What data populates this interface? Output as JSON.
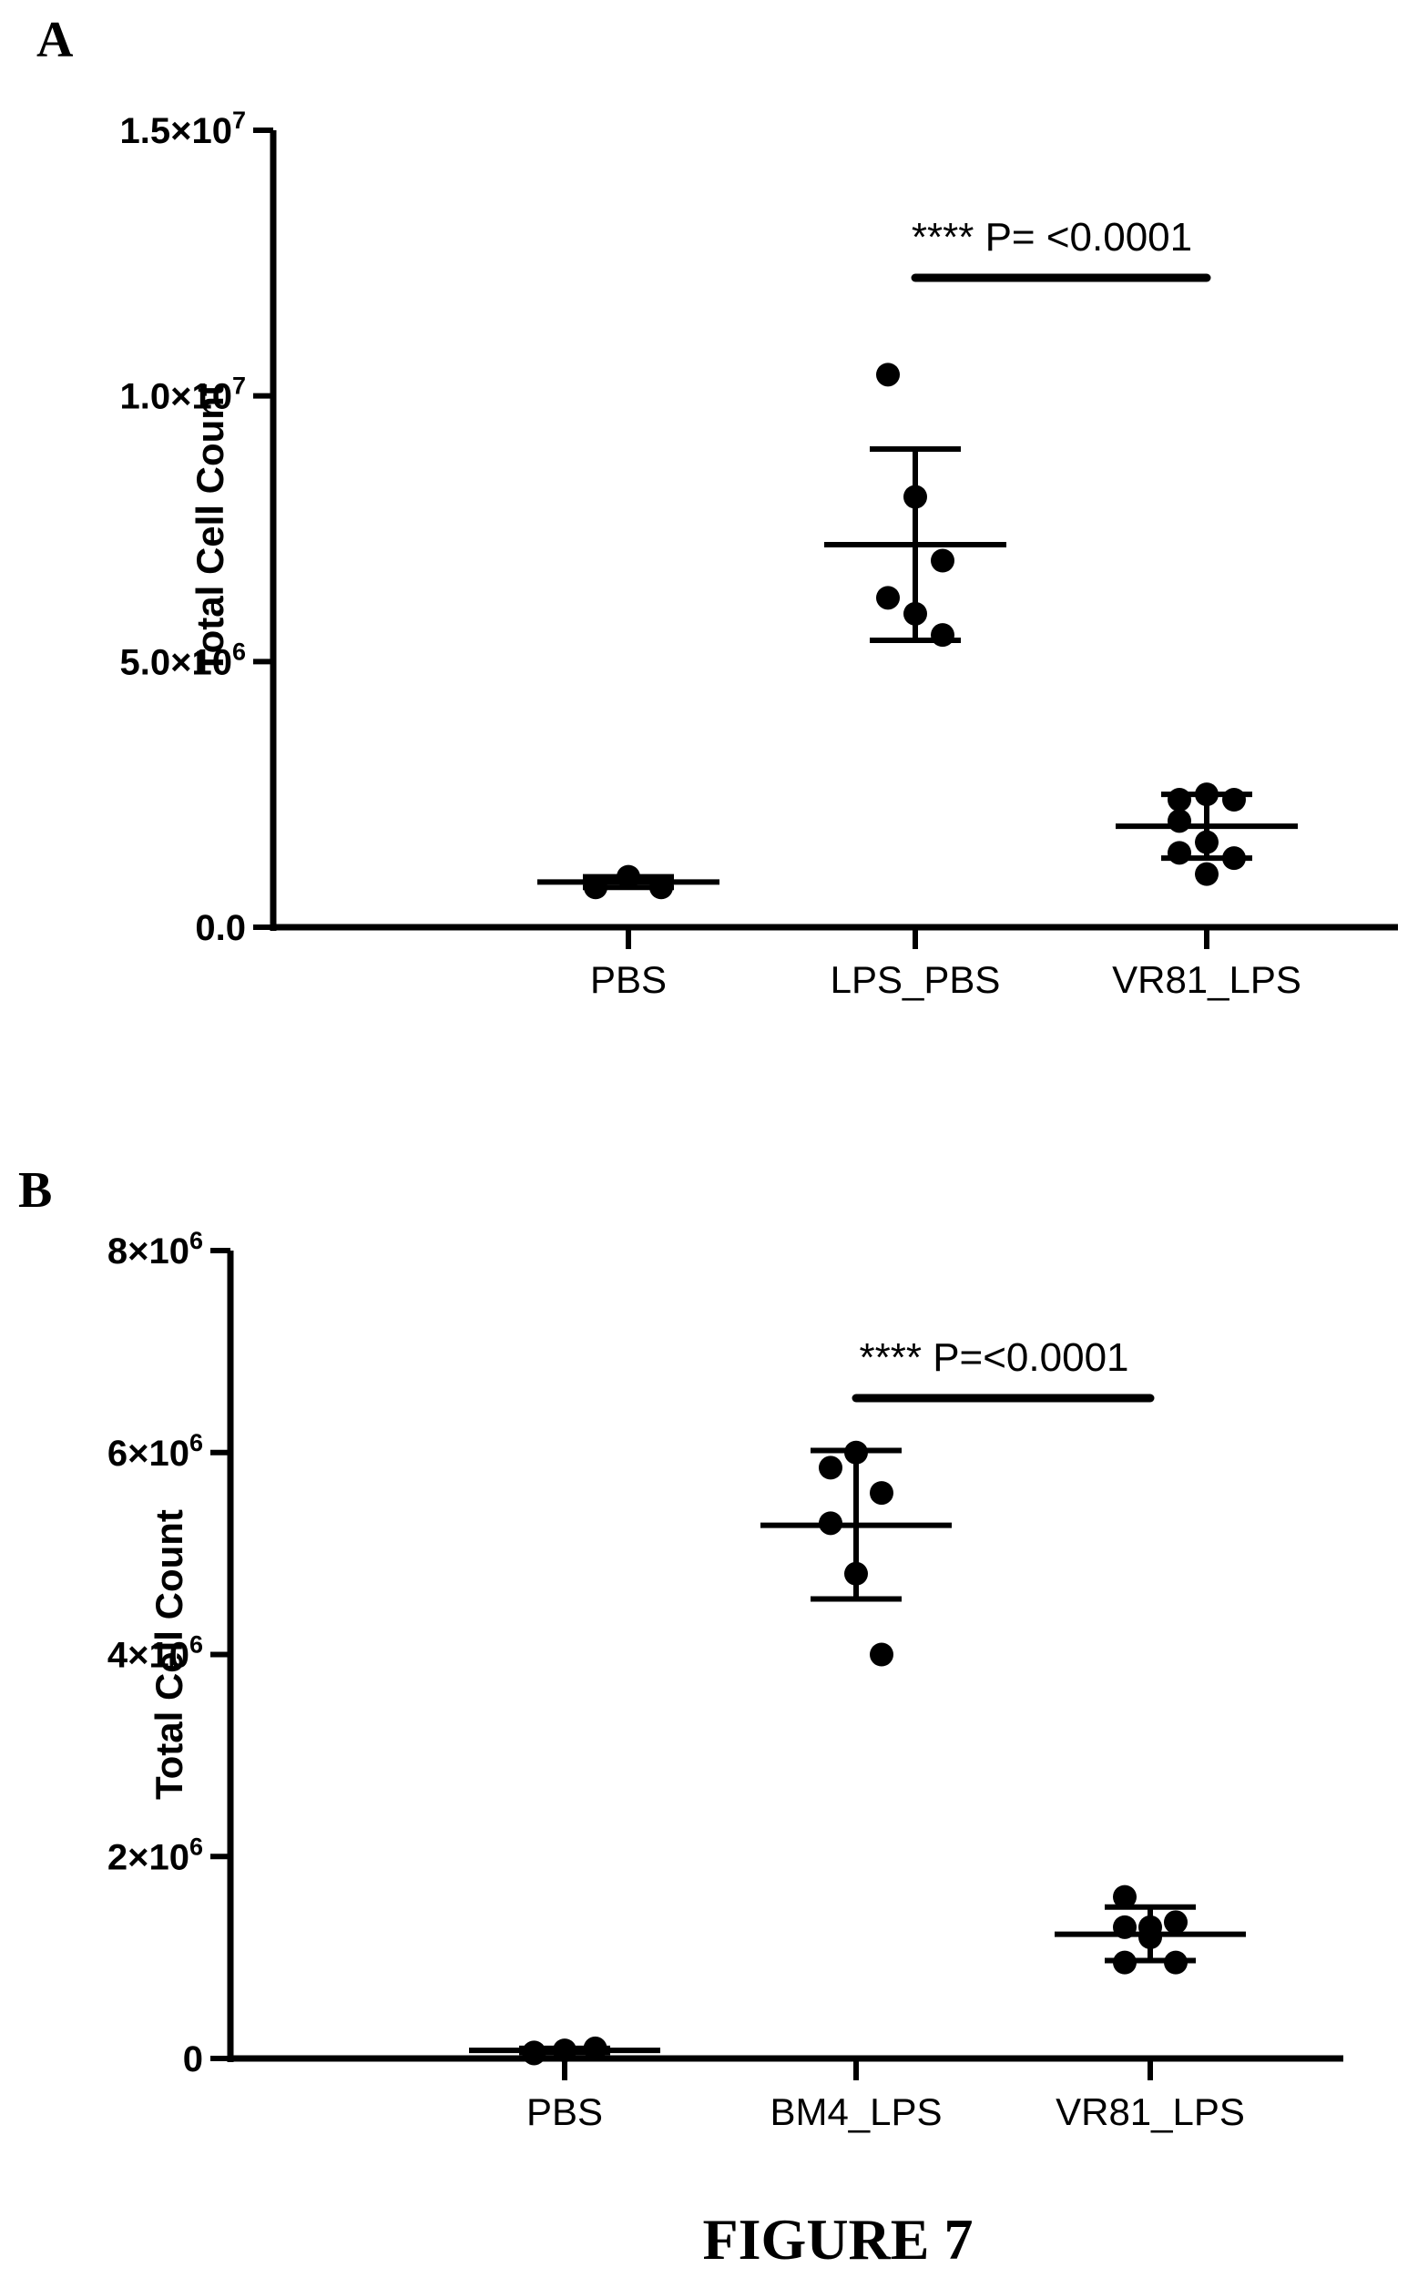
{
  "figure_caption": "FIGURE 7",
  "colors": {
    "ink": "#000000",
    "background": "#ffffff"
  },
  "chart_data": [
    {
      "panel": "A",
      "type": "scatter",
      "title": "",
      "ylabel": "Total Cell Count",
      "xlabel": "",
      "ylim": [
        0,
        15000000
      ],
      "yticks": [
        {
          "value": 0,
          "mantissa": "0.0",
          "exponent": ""
        },
        {
          "value": 5000000,
          "mantissa": "5.0×10",
          "exponent": "6"
        },
        {
          "value": 10000000,
          "mantissa": "1.0×10",
          "exponent": "7"
        },
        {
          "value": 15000000,
          "mantissa": "1.5×10",
          "exponent": "7"
        }
      ],
      "categories": [
        "PBS",
        "LPS_PBS",
        "VR81_LPS"
      ],
      "groups": [
        {
          "category": "PBS",
          "points": [
            750000,
            950000,
            750000
          ],
          "mean": 850000,
          "sd_low": 750000,
          "sd_high": 950000
        },
        {
          "category": "LPS_PBS",
          "points": [
            10400000,
            8100000,
            6900000,
            6200000,
            5900000,
            5500000
          ],
          "mean": 7200000,
          "sd_low": 5400000,
          "sd_high": 9000000
        },
        {
          "category": "VR81_LPS",
          "points": [
            2400000,
            2500000,
            2400000,
            2000000,
            1600000,
            1300000,
            1400000,
            1000000
          ],
          "mean": 1900000,
          "sd_low": 1300000,
          "sd_high": 2500000
        }
      ],
      "significance": {
        "from": "LPS_PBS",
        "to": "VR81_LPS",
        "stars": "****",
        "label": "P= <0.0001"
      }
    },
    {
      "panel": "B",
      "type": "scatter",
      "title": "",
      "ylabel": "Total Cell Count",
      "xlabel": "",
      "ylim": [
        0,
        8000000
      ],
      "yticks": [
        {
          "value": 0,
          "mantissa": "0",
          "exponent": ""
        },
        {
          "value": 2000000,
          "mantissa": "2×10",
          "exponent": "6"
        },
        {
          "value": 4000000,
          "mantissa": "4×10",
          "exponent": "6"
        },
        {
          "value": 6000000,
          "mantissa": "6×10",
          "exponent": "6"
        },
        {
          "value": 8000000,
          "mantissa": "8×10",
          "exponent": "6"
        }
      ],
      "categories": [
        "PBS",
        "BM4_LPS",
        "VR81_LPS"
      ],
      "groups": [
        {
          "category": "PBS",
          "points": [
            50000,
            80000,
            100000,
            60000
          ],
          "mean": 80000,
          "sd_low": 60000,
          "sd_high": 100000
        },
        {
          "category": "BM4_LPS",
          "points": [
            5850000,
            6000000,
            5600000,
            5300000,
            4800000,
            4000000
          ],
          "mean": 5280000,
          "sd_low": 4550000,
          "sd_high": 6020000
        },
        {
          "category": "VR81_LPS",
          "points": [
            1600000,
            1300000,
            1350000,
            1300000,
            1200000,
            950000,
            950000
          ],
          "mean": 1230000,
          "sd_low": 970000,
          "sd_high": 1500000
        }
      ],
      "significance": {
        "from": "BM4_LPS",
        "to": "VR81_LPS",
        "stars": "****",
        "label": "P=<0.0001"
      }
    }
  ]
}
